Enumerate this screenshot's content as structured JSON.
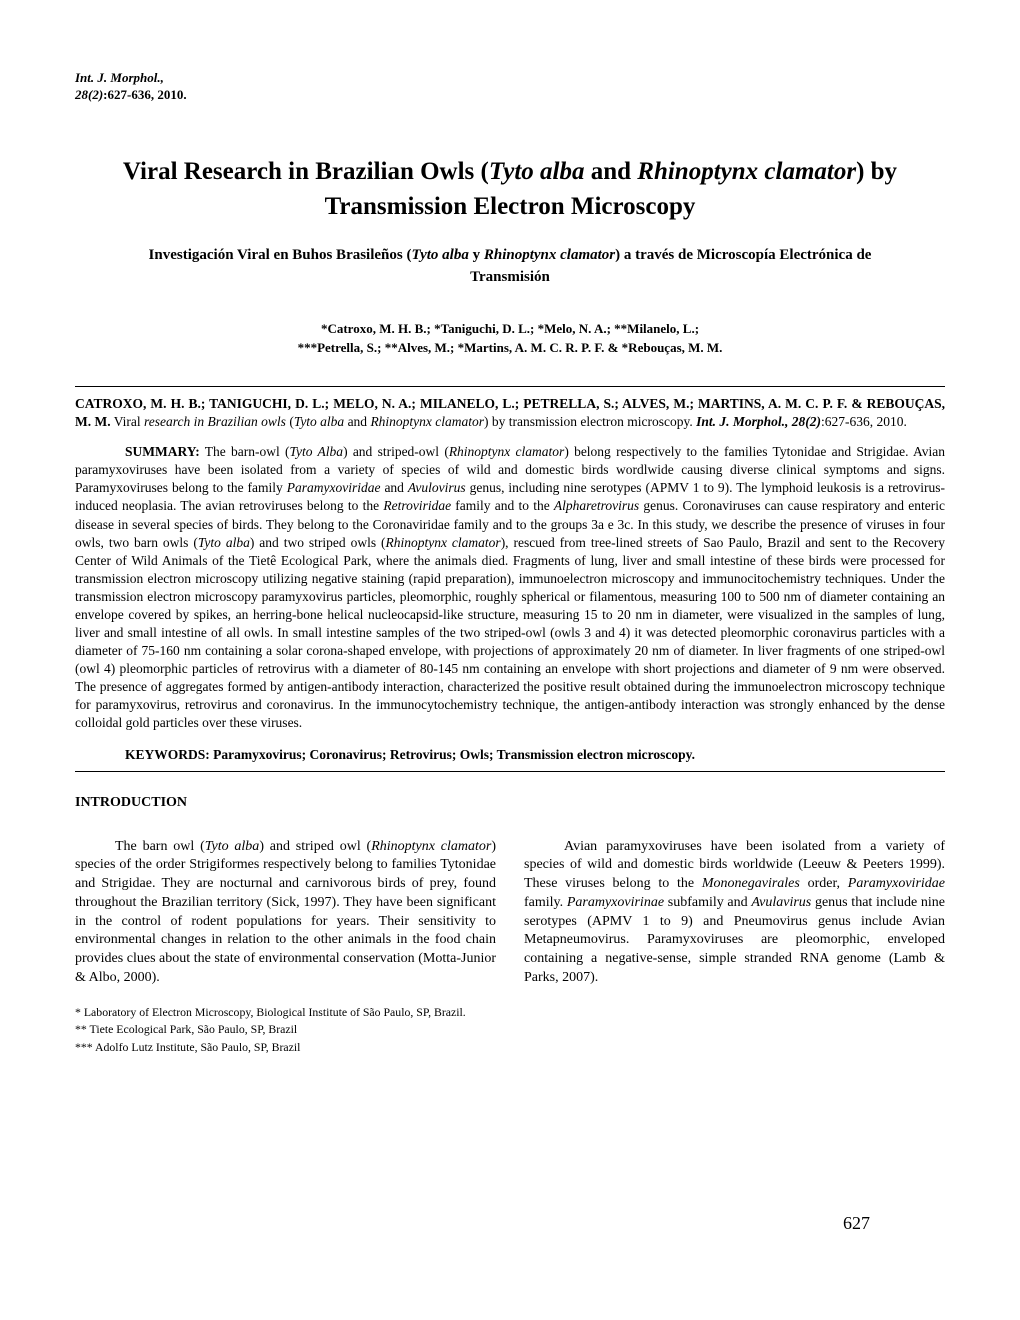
{
  "journal": {
    "name": "Int. J. Morphol.,",
    "volume": "28(2)",
    "pages": ":627-636, 2010."
  },
  "title": {
    "pre": "Viral   Research   in   Brazilian   Owls   (",
    "it1": "Tyto alba",
    "mid": "  and  ",
    "it2": "Rhinoptynx clamator",
    "post": ")   by   Transmission   Electron   Microscopy"
  },
  "subtitle": {
    "pre": "Investigación   Viral   en   Buhos   Brasileños   (",
    "it1": "Tyto alba",
    "mid": "  y  ",
    "it2": "Rhinoptynx clamator",
    "post": ") a   través   de   Microscopía   Electrónica   de   Transmisión"
  },
  "authors": {
    "line1": "*Catroxo, M. H. B.; *Taniguchi, D. L.; *Melo, N. A.; **Milanelo, L.;",
    "line2": "***Petrella, S.; **Alves, M.; *Martins, A. M. C. R. P. F. & *Rebouças, M. M."
  },
  "citation": {
    "authors_caps": "CATROXO, M. H. B.; TANIGUCHI, D. L.; MELO, N. A.; MILANELO, L.; PETRELLA, S.; ALVES, M.;  MARTINS, A. M. C. P. F. & REBOUÇAS, M. M.",
    "plain1": " Viral ",
    "it1": "research in Brazilian owls",
    "plain2": " (",
    "it2": "Tyto alba",
    "plain3": "  and  ",
    "it3": "Rhinoptynx clamator",
    "plain4": ") by transmission electron microscopy. ",
    "journal_bi": "Int. J. Morphol., 28(2)",
    "tail": ":627-636, 2010."
  },
  "summary": {
    "label": "SUMMARY:",
    "body_pre": " The barn-owl (",
    "it1": "Tyto Alba",
    "body_1": ") and striped-owl (",
    "it2": "Rhinoptynx clamator",
    "body_2": ") belong respectively to the families Tytonidae and Strigidae. Avian paramyxoviruses have been  isolated from a variety of species of wild and domestic birds wordlwide causing diverse clinical symptoms and signs. Paramyxoviruses belong to the family ",
    "it3": "Paramyxoviridae",
    "body_3": " and ",
    "it4": "Avulovirus",
    "body_4": " genus, including nine serotypes (APMV 1 to 9). The lymphoid leukosis is a retrovirus-induced neoplasia. The avian retroviruses belong to the ",
    "it5": "Retroviridae",
    "body_5": " family and to the ",
    "it6": "Alpharetrovirus",
    "body_6": " genus. Coronaviruses can cause respiratory and enteric disease in several species of birds. They belong to the Coronaviridae family and to the groups 3a e 3c. In this study, we describe the presence of viruses in four owls, two barn owls (",
    "it7": "Tyto alba",
    "body_7": ") and two striped owls (",
    "it8": "Rhinoptynx clamator",
    "body_8": "), rescued from tree-lined streets of Sao Paulo, Brazil and sent to the Recovery Center of Wild Animals of the Tietê Ecological Park, where the animals died. Fragments of lung, liver and small intestine of these birds were processed for transmission electron microscopy utilizing negative staining (rapid preparation), immunoelectron microscopy and immunocitochemistry techniques. Under the transmission electron microscopy paramyxovirus particles, pleomorphic, roughly spherical or filamentous, measuring 100 to 500 nm of diameter containing an envelope covered by spikes, an herring-bone helical nucleocapsid-like structure, measuring 15 to 20 nm in diameter, were visualized in the samples of lung, liver and small intestine of all owls. In small intestine samples of the  two striped-owl  (owls 3 and 4) it was detected  pleomorphic coronavirus particles with a diameter of 75-160 nm containing a solar corona-shaped envelope, with projections of approximately 20 nm of diameter. In liver fragments of one striped-owl (owl 4) pleomorphic particles of retrovirus with a diameter of 80-145 nm containing  an envelope with short projections and diameter of 9 nm were observed. The presence of aggregates formed by antigen-antibody interaction, characterized the positive result obtained during the immunoelectron microscopy technique for paramyxovirus, retrovirus and coronavirus. In the immunocytochemistry technique, the antigen-antibody interaction was strongly enhanced by the dense colloidal gold particles over these viruses."
  },
  "keywords": "KEYWORDS: Paramyxovirus; Coronavirus; Retrovirus; Owls; Transmission electron microscopy.",
  "section": "INTRODUCTION",
  "col_left": {
    "pre": "The barn owl  (",
    "it1": "Tyto alba",
    "mid1": ") and striped owl   (",
    "it2": "Rhinoptynx clamator",
    "post": ")   species of the order Strigiformes respectively belong to families Tytonidae and Strigidae.  They are nocturnal and carnivorous birds of prey, found throughout the Brazilian territory  (Sick, 1997).  They have been significant in the control of rodent populations for years.  Their sensitivity to environmental changes in relation to the other animals in the food chain provides clues about the state of environmental conservation  (Motta-Junior  &  Albo, 2000)."
  },
  "col_right": {
    "pre": "Avian paramyxoviruses have been isolated from a variety of species of wild and domestic birds worldwide (Leeuw & Peeters  1999).  These viruses belong to the  ",
    "it1": "Mononegavirales",
    "mid1": "  order,     ",
    "it2": "Paramyxoviridae",
    "mid2": "  family.  ",
    "it3": "Paramyxovirinae",
    "mid3": "  subfamily and ",
    "it4": "Avulavirus",
    "post": "  genus that include nine serotypes (APMV 1 to 9) and  Pneumovirus  genus include Avian Metapneumovirus.  Paramyxoviruses are pleomorphic, enveloped containing a negative-sense, simple stranded RNA genome  (Lamb & Parks, 2007)."
  },
  "footnotes": {
    "f1": "*   Laboratory of Electron Microscopy, Biological Institute of São Paulo, SP, Brazil.",
    "f2": "**  Tiete Ecological Park, São Paulo, SP, Brazil",
    "f3": "*** Adolfo Lutz Institute, São Paulo, SP, Brazil"
  },
  "page_number": "627"
}
